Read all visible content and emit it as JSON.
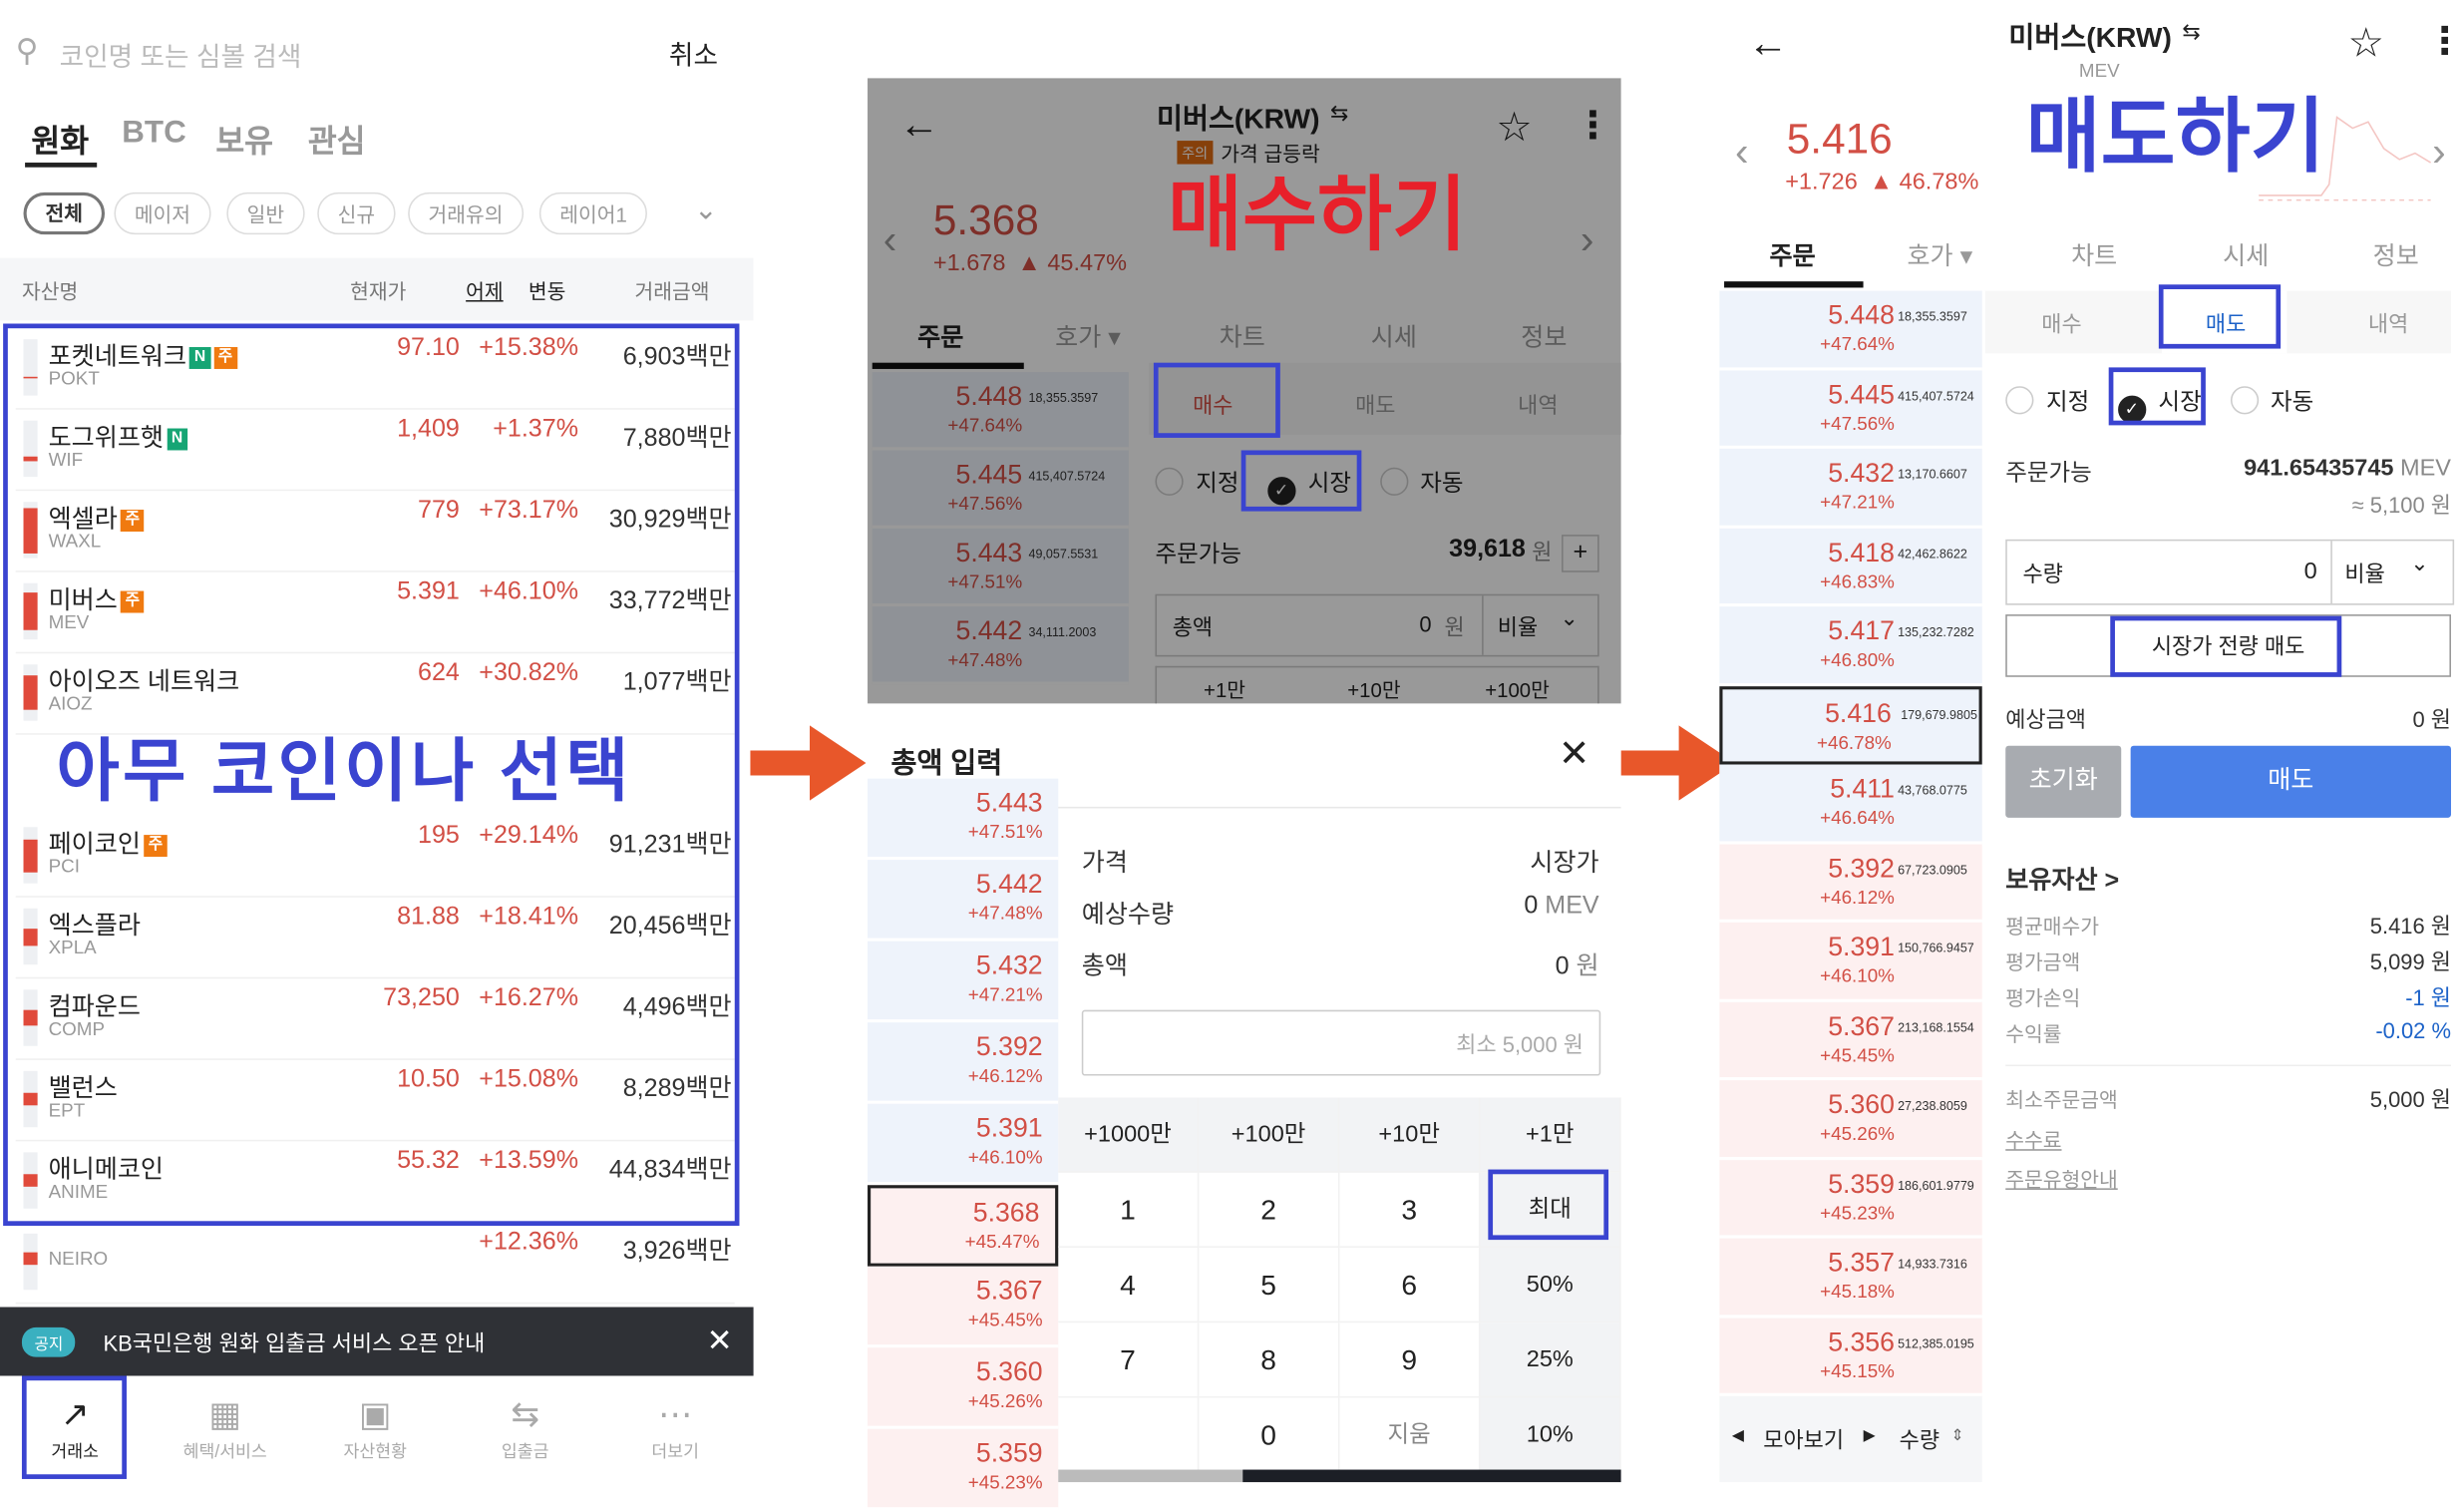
{
  "colors": {
    "accent_red": "#d24f45",
    "highlight_blue": "#3a44d0",
    "arrow_orange": "#e8572a",
    "sell_blue": "#4a80e8",
    "annotation_red": "#e8202a"
  },
  "market_list": {
    "search_placeholder": "코인명 또는 심볼 검색",
    "search_icon": "search-icon",
    "cancel_label": "취소",
    "tabs": [
      "원화",
      "BTC",
      "보유",
      "관심"
    ],
    "active_tab": "원화",
    "chips": [
      "전체",
      "메이저",
      "일반",
      "신규",
      "거래유의",
      "레이어1"
    ],
    "columns": {
      "name": "자산명",
      "price": "현재가",
      "yesterday": "어제",
      "change": "변동",
      "volume": "거래금액"
    },
    "rows": [
      {
        "name": "포켓네트워크",
        "badges": [
          "N",
          "주"
        ],
        "symbol": "POKT",
        "price": "97.10",
        "change": "+15.38%",
        "volume": "6,903백만"
      },
      {
        "name": "도그위프햇",
        "badges": [
          "N"
        ],
        "symbol": "WIF",
        "price": "1,409",
        "change": "+1.37%",
        "volume": "7,880백만"
      },
      {
        "name": "엑셀라",
        "badges": [
          "주"
        ],
        "symbol": "WAXL",
        "price": "779",
        "change": "+73.17%",
        "volume": "30,929백만"
      },
      {
        "name": "미버스",
        "badges": [
          "주"
        ],
        "symbol": "MEV",
        "price": "5.391",
        "change": "+46.10%",
        "volume": "33,772백만"
      },
      {
        "name": "아이오즈 네트워크",
        "badges": [],
        "symbol": "AIOZ",
        "price": "624",
        "change": "+30.82%",
        "volume": "1,077백만"
      },
      {
        "name": "페이코인",
        "badges": [
          "주"
        ],
        "symbol": "PCI",
        "price": "195",
        "change": "+29.14%",
        "volume": "91,231백만"
      },
      {
        "name": "엑스플라",
        "badges": [],
        "symbol": "XPLA",
        "price": "81.88",
        "change": "+18.41%",
        "volume": "20,456백만"
      },
      {
        "name": "컴파운드",
        "badges": [],
        "symbol": "COMP",
        "price": "73,250",
        "change": "+16.27%",
        "volume": "4,496백만"
      },
      {
        "name": "밸런스",
        "badges": [],
        "symbol": "EPT",
        "price": "10.50",
        "change": "+15.08%",
        "volume": "8,289백만"
      },
      {
        "name": "애니메코인",
        "badges": [],
        "symbol": "ANIME",
        "price": "55.32",
        "change": "+13.59%",
        "volume": "44,834백만"
      }
    ],
    "hidden_row": {
      "symbol": "NEIRO",
      "change": "+12.36%",
      "volume": "3,926백만"
    },
    "notice": {
      "tag": "공지",
      "text": "KB국민은행 원화 입출금 서비스 오픈 안내"
    },
    "bottom_nav": [
      {
        "label": "거래소",
        "icon": "chart-trend-icon"
      },
      {
        "label": "혜택/서비스",
        "icon": "grid-icon"
      },
      {
        "label": "자산현황",
        "icon": "wallet-icon"
      },
      {
        "label": "입출금",
        "icon": "transfer-icon"
      },
      {
        "label": "더보기",
        "icon": "more-icon"
      }
    ],
    "annotation": "아무 코인이나 선택"
  },
  "buy_screen": {
    "title": "미버스(KRW)",
    "warning_tag": "주의",
    "warning_text": "가격 급등락",
    "price": "5.368",
    "change_abs": "+1.678",
    "change_pct": "▲ 45.47%",
    "tabs": [
      "주문",
      "호가 ▾",
      "차트",
      "시세",
      "정보"
    ],
    "order_tabs": [
      "매수",
      "매도",
      "내역"
    ],
    "order_types": [
      "지정",
      "시장",
      "자동"
    ],
    "available_label": "주문가능",
    "available_value": "39,618",
    "won": "원",
    "total_label": "총액",
    "total_value": "0",
    "ratio_label": "비율",
    "quick_buttons": [
      "+1만",
      "+10만",
      "+100만"
    ],
    "orderbook": [
      {
        "price": "5.448",
        "pct": "+47.64%",
        "vol": "18,355.3597"
      },
      {
        "price": "5.445",
        "pct": "+47.56%",
        "vol": "415,407.5724"
      },
      {
        "price": "5.443",
        "pct": "+47.51%",
        "vol": "49,057.5531"
      },
      {
        "price": "5.442",
        "pct": "+47.48%",
        "vol": "34,111.2003"
      }
    ],
    "annotation": "매수하기",
    "sheet": {
      "title": "총액 입력",
      "price_label": "가격",
      "price_value": "시장가",
      "qty_label": "예상수량",
      "qty_value": "0",
      "qty_unit": "MEV",
      "total_label": "총액",
      "total_value": "0",
      "total_unit": "원",
      "input_placeholder": "최소 5,000 원",
      "keypad": [
        [
          "+1000만",
          "+100만",
          "+10만",
          "+1만"
        ],
        [
          "1",
          "2",
          "3",
          "최대"
        ],
        [
          "4",
          "5",
          "6",
          "50%"
        ],
        [
          "7",
          "8",
          "9",
          "25%"
        ],
        [
          "",
          "0",
          "지움",
          "10%"
        ]
      ],
      "orderbook": [
        {
          "price": "5.443",
          "pct": "+47.51%",
          "side": "ask"
        },
        {
          "price": "5.442",
          "pct": "+47.48%",
          "side": "ask"
        },
        {
          "price": "5.432",
          "pct": "+47.21%",
          "side": "ask"
        },
        {
          "price": "5.392",
          "pct": "+46.12%",
          "side": "ask"
        },
        {
          "price": "5.391",
          "pct": "+46.10%",
          "side": "ask"
        },
        {
          "price": "5.368",
          "pct": "+45.47%",
          "side": "bid",
          "current": true
        },
        {
          "price": "5.367",
          "pct": "+45.45%",
          "side": "bid"
        },
        {
          "price": "5.360",
          "pct": "+45.26%",
          "side": "bid"
        },
        {
          "price": "5.359",
          "pct": "+45.23%",
          "side": "bid"
        }
      ]
    }
  },
  "sell_screen": {
    "title": "미버스(KRW)",
    "symbol": "MEV",
    "price": "5.416",
    "change_abs": "+1.726",
    "change_pct": "▲ 46.78%",
    "tabs": [
      "주문",
      "호가 ▾",
      "차트",
      "시세",
      "정보"
    ],
    "order_tabs": [
      "매수",
      "매도",
      "내역"
    ],
    "order_types": [
      "지정",
      "시장",
      "자동"
    ],
    "available_label": "주문가능",
    "available_value": "941.65435745",
    "available_unit": "MEV",
    "available_approx": "≈ 5,100 원",
    "qty_label": "수량",
    "qty_value": "0",
    "ratio_label": "비율",
    "sell_all_label": "시장가 전량 매도",
    "expected_label": "예상금액",
    "expected_value": "0 원",
    "reset_label": "초기화",
    "sell_label": "매도",
    "holdings_title": "보유자산 >",
    "holdings": [
      {
        "label": "평균매수가",
        "value": "5.416 원",
        "tone": "normal"
      },
      {
        "label": "평가금액",
        "value": "5,099 원",
        "tone": "normal"
      },
      {
        "label": "평가손익",
        "value": "-1 원",
        "tone": "negative"
      },
      {
        "label": "수익률",
        "value": "-0.02 %",
        "tone": "negative"
      }
    ],
    "min_order_label": "최소주문금액",
    "min_order_value": "5,000 원",
    "links": [
      "수수료",
      "주문유형안내"
    ],
    "orderbook": [
      {
        "price": "5.448",
        "pct": "+47.64%",
        "vol": "18,355.3597",
        "side": "ask"
      },
      {
        "price": "5.445",
        "pct": "+47.56%",
        "vol": "415,407.5724",
        "side": "ask"
      },
      {
        "price": "5.432",
        "pct": "+47.21%",
        "vol": "13,170.6607",
        "side": "ask"
      },
      {
        "price": "5.418",
        "pct": "+46.83%",
        "vol": "42,462.8622",
        "side": "ask"
      },
      {
        "price": "5.417",
        "pct": "+46.80%",
        "vol": "135,232.7282",
        "side": "ask"
      },
      {
        "price": "5.416",
        "pct": "+46.78%",
        "vol": "179,679.9805",
        "side": "ask",
        "current": true
      },
      {
        "price": "5.411",
        "pct": "+46.64%",
        "vol": "43,768.0775",
        "side": "ask"
      },
      {
        "price": "5.392",
        "pct": "+46.12%",
        "vol": "67,723.0905",
        "side": "bid"
      },
      {
        "price": "5.391",
        "pct": "+46.10%",
        "vol": "150,766.9457",
        "side": "bid"
      },
      {
        "price": "5.367",
        "pct": "+45.45%",
        "vol": "213,168.1554",
        "side": "bid"
      },
      {
        "price": "5.360",
        "pct": "+45.26%",
        "vol": "27,238.8059",
        "side": "bid"
      },
      {
        "price": "5.359",
        "pct": "+45.23%",
        "vol": "186,601.9779",
        "side": "bid"
      },
      {
        "price": "5.357",
        "pct": "+45.18%",
        "vol": "14,933.7316",
        "side": "bid"
      },
      {
        "price": "5.356",
        "pct": "+45.15%",
        "vol": "512,385.0195",
        "side": "bid"
      }
    ],
    "footer": {
      "group_label": "모아보기",
      "qty_label": "수량"
    },
    "annotation": "매도하기"
  }
}
